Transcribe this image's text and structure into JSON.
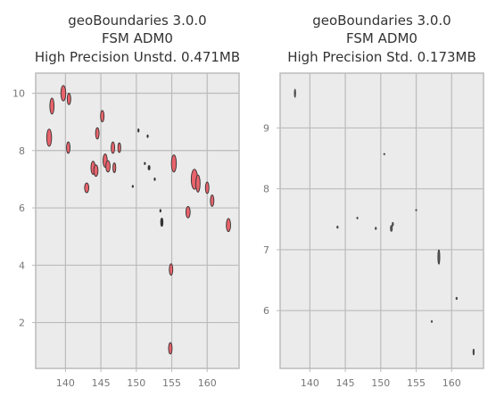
{
  "chart_data": [
    {
      "type": "scatter",
      "title": [
        "geoBoundaries 3.0.0",
        "FSM ADM0",
        "High Precision Unstd. 0.471MB"
      ],
      "xlabel": "",
      "ylabel": "",
      "xlim": [
        135.8,
        164.5
      ],
      "ylim": [
        0.4,
        10.7
      ],
      "xticks": [
        140,
        145,
        150,
        155,
        160
      ],
      "yticks": [
        2,
        4,
        6,
        8,
        10
      ],
      "grid": true,
      "colors": {
        "fill": "#e8636b",
        "edge": "#333333",
        "background": "#ebebeb",
        "grid": "#bbbbbb"
      },
      "series": [
        {
          "marker": "filled-ellipse",
          "points": [
            {
              "x": 137.7,
              "y": 8.45,
              "rx": 0.35,
              "ry": 0.3
            },
            {
              "x": 138.1,
              "y": 9.55,
              "rx": 0.3,
              "ry": 0.28
            },
            {
              "x": 139.7,
              "y": 10.0,
              "rx": 0.35,
              "ry": 0.27
            },
            {
              "x": 140.5,
              "y": 9.8,
              "rx": 0.25,
              "ry": 0.2
            },
            {
              "x": 140.4,
              "y": 8.1,
              "rx": 0.25,
              "ry": 0.2
            },
            {
              "x": 143.0,
              "y": 6.7,
              "rx": 0.3,
              "ry": 0.17
            },
            {
              "x": 143.9,
              "y": 7.4,
              "rx": 0.3,
              "ry": 0.23
            },
            {
              "x": 144.3,
              "y": 7.3,
              "rx": 0.3,
              "ry": 0.2
            },
            {
              "x": 144.5,
              "y": 8.6,
              "rx": 0.25,
              "ry": 0.2
            },
            {
              "x": 145.2,
              "y": 9.2,
              "rx": 0.25,
              "ry": 0.2
            },
            {
              "x": 145.6,
              "y": 7.65,
              "rx": 0.3,
              "ry": 0.23
            },
            {
              "x": 146.0,
              "y": 7.45,
              "rx": 0.3,
              "ry": 0.2
            },
            {
              "x": 146.7,
              "y": 8.1,
              "rx": 0.25,
              "ry": 0.2
            },
            {
              "x": 146.9,
              "y": 7.4,
              "rx": 0.2,
              "ry": 0.17
            },
            {
              "x": 147.6,
              "y": 8.1,
              "rx": 0.2,
              "ry": 0.17
            },
            {
              "x": 155.3,
              "y": 7.55,
              "rx": 0.35,
              "ry": 0.3
            },
            {
              "x": 158.2,
              "y": 7.0,
              "rx": 0.45,
              "ry": 0.35
            },
            {
              "x": 158.7,
              "y": 6.85,
              "rx": 0.3,
              "ry": 0.3
            },
            {
              "x": 157.3,
              "y": 5.85,
              "rx": 0.3,
              "ry": 0.2
            },
            {
              "x": 160.0,
              "y": 6.7,
              "rx": 0.25,
              "ry": 0.2
            },
            {
              "x": 160.7,
              "y": 6.25,
              "rx": 0.25,
              "ry": 0.2
            },
            {
              "x": 163.0,
              "y": 5.4,
              "rx": 0.3,
              "ry": 0.23
            },
            {
              "x": 154.9,
              "y": 3.85,
              "rx": 0.25,
              "ry": 0.2
            },
            {
              "x": 154.8,
              "y": 1.1,
              "rx": 0.25,
              "ry": 0.2
            }
          ]
        },
        {
          "marker": "small-dark",
          "points": [
            {
              "x": 151.8,
              "y": 7.4,
              "rx": 0.15,
              "ry": 0.08
            },
            {
              "x": 153.4,
              "y": 5.9,
              "rx": 0.08,
              "ry": 0.05
            },
            {
              "x": 153.6,
              "y": 5.5,
              "rx": 0.18,
              "ry": 0.15
            },
            {
              "x": 150.3,
              "y": 8.7,
              "rx": 0.08,
              "ry": 0.06
            },
            {
              "x": 151.6,
              "y": 8.5,
              "rx": 0.06,
              "ry": 0.05
            },
            {
              "x": 152.6,
              "y": 7.0,
              "rx": 0.06,
              "ry": 0.05
            },
            {
              "x": 149.5,
              "y": 6.75,
              "rx": 0.05,
              "ry": 0.04
            },
            {
              "x": 151.2,
              "y": 7.55,
              "rx": 0.05,
              "ry": 0.04
            }
          ]
        }
      ]
    },
    {
      "type": "scatter",
      "title": [
        "geoBoundaries 3.0.0",
        "FSM ADM0",
        "High Precision Std. 0.173MB"
      ],
      "xlabel": "",
      "ylabel": "",
      "xlim": [
        135.8,
        164.5
      ],
      "ylim": [
        5.05,
        9.9
      ],
      "xticks": [
        140,
        145,
        150,
        155,
        160
      ],
      "yticks": [
        6,
        7,
        8,
        9
      ],
      "grid": true,
      "colors": {
        "fill": "#555555",
        "edge": "#333333",
        "background": "#ebebeb",
        "grid": "#bbbbbb"
      },
      "series": [
        {
          "marker": "small-dark",
          "points": [
            {
              "x": 137.9,
              "y": 9.57,
              "rx": 0.1,
              "ry": 0.07
            },
            {
              "x": 143.9,
              "y": 7.37,
              "rx": 0.08,
              "ry": 0.02
            },
            {
              "x": 146.7,
              "y": 7.52,
              "rx": 0.05,
              "ry": 0.015
            },
            {
              "x": 149.3,
              "y": 7.35,
              "rx": 0.09,
              "ry": 0.02
            },
            {
              "x": 151.5,
              "y": 7.35,
              "rx": 0.15,
              "ry": 0.05
            },
            {
              "x": 151.7,
              "y": 7.42,
              "rx": 0.06,
              "ry": 0.03
            },
            {
              "x": 150.5,
              "y": 8.57,
              "rx": 0.04,
              "ry": 0.01
            },
            {
              "x": 155.0,
              "y": 7.65,
              "rx": 0.05,
              "ry": 0.01
            },
            {
              "x": 158.2,
              "y": 6.88,
              "rx": 0.15,
              "ry": 0.12
            },
            {
              "x": 160.7,
              "y": 6.2,
              "rx": 0.08,
              "ry": 0.02
            },
            {
              "x": 157.2,
              "y": 5.82,
              "rx": 0.06,
              "ry": 0.015
            },
            {
              "x": 163.1,
              "y": 5.32,
              "rx": 0.09,
              "ry": 0.05
            }
          ]
        }
      ]
    }
  ]
}
